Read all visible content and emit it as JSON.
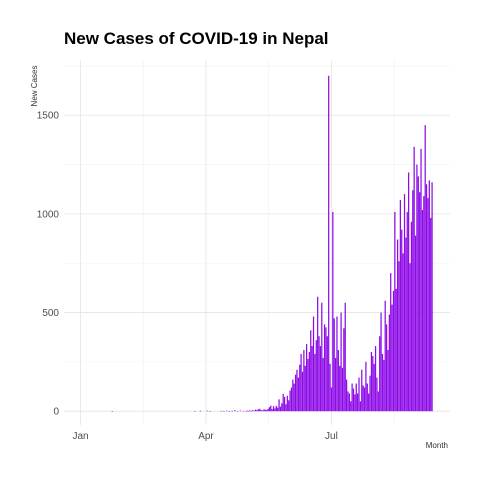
{
  "chart_data": {
    "type": "bar",
    "title": "New Cases of COVID-19 in Nepal",
    "xlabel": "Month",
    "ylabel": "New Cases",
    "x_ticks": [
      {
        "label": "Jan",
        "date": "2020-01-01"
      },
      {
        "label": "Apr",
        "date": "2020-04-01"
      },
      {
        "label": "Jul",
        "date": "2020-07-01"
      }
    ],
    "y_ticks": [
      0,
      500,
      1000,
      1500
    ],
    "xlim": [
      "2019-12-20",
      "2020-09-25"
    ],
    "ylim": [
      -70,
      1780
    ],
    "grid": true,
    "bar_color": "#8E0BE8",
    "series": [
      {
        "x": [
          "2020-01-24",
          "2020-03-24",
          "2020-03-28",
          "2020-04-02",
          "2020-04-04",
          "2020-04-12",
          "2020-04-14",
          "2020-04-16",
          "2020-04-18",
          "2020-04-20",
          "2020-04-22",
          "2020-04-24",
          "2020-04-26",
          "2020-04-28",
          "2020-04-30",
          "2020-05-01",
          "2020-05-02",
          "2020-05-03",
          "2020-05-04",
          "2020-05-05",
          "2020-05-06",
          "2020-05-07",
          "2020-05-08",
          "2020-05-09",
          "2020-05-10",
          "2020-05-11",
          "2020-05-12",
          "2020-05-13",
          "2020-05-14",
          "2020-05-15",
          "2020-05-16",
          "2020-05-17",
          "2020-05-18",
          "2020-05-19",
          "2020-05-20",
          "2020-05-21",
          "2020-05-22",
          "2020-05-23",
          "2020-05-24",
          "2020-05-25",
          "2020-05-26",
          "2020-05-27",
          "2020-05-28",
          "2020-05-29",
          "2020-05-30",
          "2020-05-31",
          "2020-06-01",
          "2020-06-02",
          "2020-06-03",
          "2020-06-04",
          "2020-06-05",
          "2020-06-06",
          "2020-06-07",
          "2020-06-08",
          "2020-06-09",
          "2020-06-10",
          "2020-06-11",
          "2020-06-12",
          "2020-06-13",
          "2020-06-14",
          "2020-06-15",
          "2020-06-16",
          "2020-06-17",
          "2020-06-18",
          "2020-06-19",
          "2020-06-20",
          "2020-06-21",
          "2020-06-22",
          "2020-06-23",
          "2020-06-24",
          "2020-06-25",
          "2020-06-26",
          "2020-06-27",
          "2020-06-28",
          "2020-06-29",
          "2020-06-30",
          "2020-07-01",
          "2020-07-02",
          "2020-07-03",
          "2020-07-04",
          "2020-07-05",
          "2020-07-06",
          "2020-07-07",
          "2020-07-08",
          "2020-07-09",
          "2020-07-10",
          "2020-07-11",
          "2020-07-12",
          "2020-07-13",
          "2020-07-14",
          "2020-07-15",
          "2020-07-16",
          "2020-07-17",
          "2020-07-18",
          "2020-07-19",
          "2020-07-20",
          "2020-07-21",
          "2020-07-22",
          "2020-07-23",
          "2020-07-24",
          "2020-07-25",
          "2020-07-26",
          "2020-07-27",
          "2020-07-28",
          "2020-07-29",
          "2020-07-30",
          "2020-07-31",
          "2020-08-01",
          "2020-08-02",
          "2020-08-03",
          "2020-08-04",
          "2020-08-05",
          "2020-08-06",
          "2020-08-07",
          "2020-08-08",
          "2020-08-09",
          "2020-08-10",
          "2020-08-11",
          "2020-08-12",
          "2020-08-13",
          "2020-08-14",
          "2020-08-15",
          "2020-08-16",
          "2020-08-17",
          "2020-08-18",
          "2020-08-19",
          "2020-08-20",
          "2020-08-21",
          "2020-08-22",
          "2020-08-23",
          "2020-08-24",
          "2020-08-25",
          "2020-08-26",
          "2020-08-27",
          "2020-08-28",
          "2020-08-29",
          "2020-08-30",
          "2020-08-31",
          "2020-09-01",
          "2020-09-02",
          "2020-09-03",
          "2020-09-04",
          "2020-09-05",
          "2020-09-06",
          "2020-09-07",
          "2020-09-08",
          "2020-09-09",
          "2020-09-10",
          "2020-09-11",
          "2020-09-12"
        ],
        "values": [
          1,
          1,
          2,
          3,
          1,
          2,
          1,
          3,
          1,
          2,
          5,
          1,
          3,
          2,
          1,
          3,
          2,
          4,
          2,
          5,
          3,
          8,
          5,
          10,
          12,
          6,
          4,
          9,
          8,
          6,
          12,
          20,
          28,
          10,
          25,
          14,
          27,
          18,
          60,
          23,
          40,
          88,
          72,
          35,
          78,
          55,
          105,
          120,
          160,
          140,
          185,
          210,
          170,
          235,
          290,
          200,
          310,
          230,
          340,
          265,
          300,
          410,
          330,
          480,
          290,
          360,
          580,
          380,
          330,
          550,
          270,
          440,
          425,
          380,
          1700,
          240,
          120,
          1010,
          470,
          270,
          480,
          310,
          230,
          500,
          220,
          420,
          550,
          160,
          100,
          90,
          50,
          140,
          115,
          85,
          140,
          90,
          170,
          50,
          210,
          130,
          120,
          250,
          140,
          90,
          180,
          300,
          280,
          240,
          330,
          170,
          100,
          380,
          500,
          290,
          260,
          560,
          440,
          310,
          490,
          700,
          540,
          610,
          1010,
          620,
          870,
          760,
          1070,
          920,
          800,
          1100,
          880,
          1010,
          1210,
          750,
          960,
          1120,
          1340,
          890,
          1250,
          1190,
          1110,
          1330,
          1020,
          1090,
          1450,
          1150,
          1080,
          1170,
          980,
          1160
        ]
      }
    ]
  }
}
